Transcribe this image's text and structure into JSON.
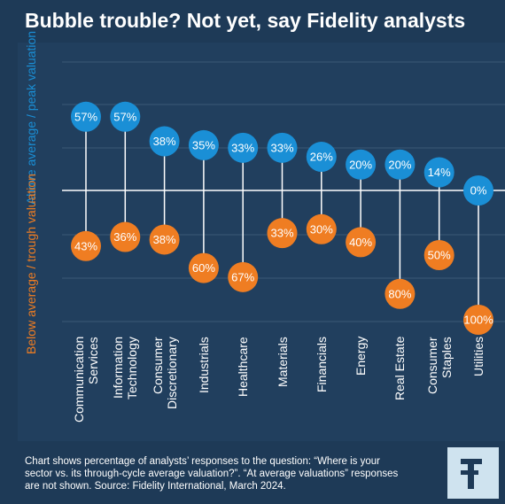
{
  "chart_data": {
    "type": "diverging-bubble",
    "title": "Bubble trouble? Not yet, say Fidelity analysts",
    "categories": [
      "Communication Services",
      "Information Technology",
      "Consumer Discretionary",
      "Industrials",
      "Healthcare",
      "Materials",
      "Financials",
      "Energy",
      "Real Estate",
      "Consumer Staples",
      "Utilities"
    ],
    "series": [
      {
        "name": "Above average / peak valuation",
        "color": "#1a8fd6",
        "values": [
          57,
          57,
          38,
          35,
          33,
          33,
          26,
          20,
          20,
          14,
          0
        ],
        "value_labels": [
          "57%",
          "57%",
          "38%",
          "35%",
          "33%",
          "33%",
          "26%",
          "20%",
          "20%",
          "14%",
          "0%"
        ]
      },
      {
        "name": "Below average / trough valuation",
        "color": "#ef7d22",
        "values": [
          43,
          36,
          38,
          60,
          67,
          33,
          30,
          40,
          80,
          50,
          100
        ],
        "value_labels": [
          "43%",
          "36%",
          "38%",
          "60%",
          "67%",
          "33%",
          "30%",
          "40%",
          "80%",
          "50%",
          "100%"
        ]
      }
    ],
    "ylim": [
      0,
      100
    ],
    "note": "Chart shows percentage of analysts’ responses to the question: “Where is your sector vs. its through-cycle average valuation?”. “At average valuations” responses are not shown. Source: Fidelity International, March 2024."
  }
}
